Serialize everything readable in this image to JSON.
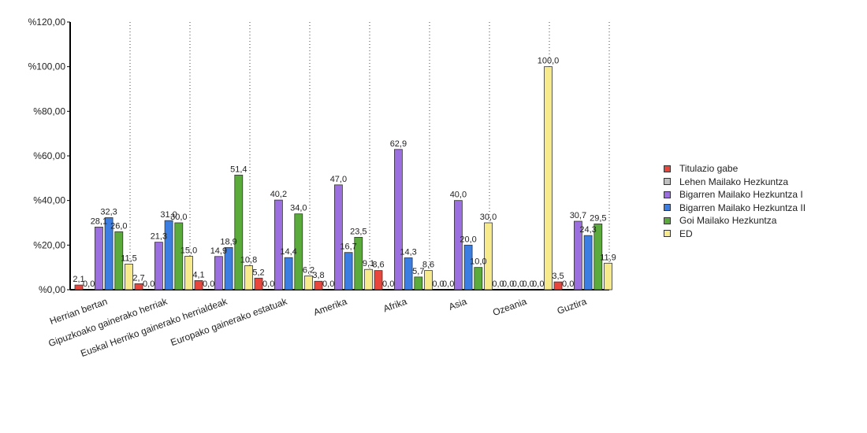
{
  "chart_data": {
    "type": "bar",
    "categories": [
      "Herrian bertan",
      "Gipuzkoako gainerako herriak",
      "Euskal Herriko gainerako herrialdeak",
      "Europako gainerako estatuak",
      "Amerika",
      "Afrika",
      "Asia",
      "Ozeania",
      "Guztira"
    ],
    "series": [
      {
        "name": "Titulazio gabe",
        "color": "#e8453c",
        "values": [
          2.1,
          2.7,
          4.1,
          5.2,
          3.8,
          8.6,
          0.0,
          0.0,
          3.5
        ],
        "labels": [
          "2,1",
          "2,7",
          "4,1",
          "5,2",
          "3,8",
          "8,6",
          "0,0",
          "0,0",
          "3,5"
        ]
      },
      {
        "name": "Lehen Mailako Hezkuntza",
        "color": "#c0c0c0",
        "values": [
          0.0,
          0.0,
          0.0,
          0.0,
          0.0,
          0.0,
          0.0,
          0.0,
          0.0
        ],
        "labels": [
          "0,0",
          "0,0",
          "0,0",
          "0,0",
          "0,0",
          "0,0",
          "0,0",
          "0,0",
          "0,0"
        ]
      },
      {
        "name": "Bigarren Mailako Hezkuntza I",
        "color": "#9b6fe0",
        "values": [
          28.1,
          21.3,
          14.9,
          40.2,
          47.0,
          62.9,
          40.0,
          0.0,
          30.7
        ],
        "labels": [
          "28,1",
          "21,3",
          "14,9",
          "40,2",
          "47,0",
          "62,9",
          "40,0",
          "0,0",
          "30,7"
        ]
      },
      {
        "name": "Bigarren Mailako Hezkuntza II",
        "color": "#3b7de0",
        "values": [
          32.3,
          31.0,
          18.9,
          14.4,
          16.7,
          14.3,
          20.0,
          0.0,
          24.3
        ],
        "labels": [
          "32,3",
          "31,0",
          "18,9",
          "14,4",
          "16,7",
          "14,3",
          "20,0",
          "0,0",
          "24,3"
        ]
      },
      {
        "name": "Goi Mailako Hezkuntza",
        "color": "#5aaa3c",
        "values": [
          26.0,
          30.0,
          51.4,
          34.0,
          23.5,
          5.7,
          10.0,
          0.0,
          29.5
        ],
        "labels": [
          "26,0",
          "30,0",
          "51,4",
          "34,0",
          "23,5",
          "5,7",
          "10,0",
          "0,0",
          "29,5"
        ]
      },
      {
        "name": "ED",
        "color": "#f6ea8c",
        "values": [
          11.5,
          15.0,
          10.8,
          6.2,
          9.1,
          8.6,
          30.0,
          100.0,
          11.9
        ],
        "labels": [
          "11,5",
          "15,0",
          "10,8",
          "6,2",
          "9,1",
          "8,6",
          "30,0",
          "100,0",
          "11,9"
        ]
      }
    ],
    "y_ticks": [
      "%0,00",
      "%20,00",
      "%40,00",
      "%60,00",
      "%80,00",
      "%100,00",
      "%120,00"
    ],
    "ylim": [
      0,
      120
    ],
    "legend_position": "right"
  }
}
